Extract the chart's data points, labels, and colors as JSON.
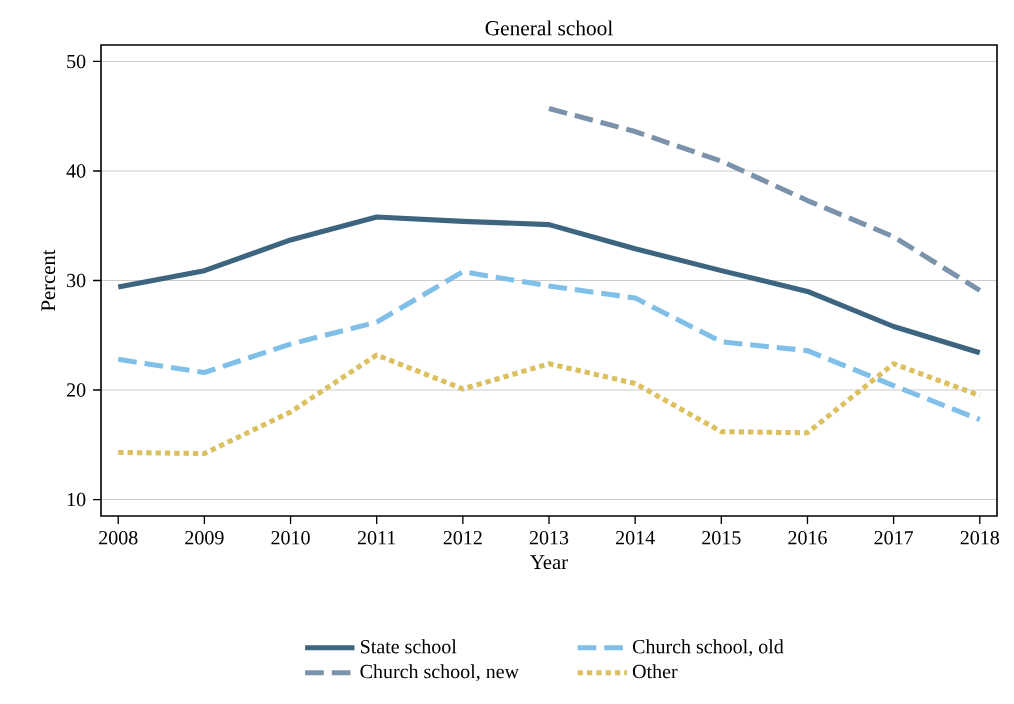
{
  "chart_data": {
    "type": "line",
    "title": "General school",
    "xlabel": "Year",
    "ylabel": "Percent",
    "x": [
      2008,
      2009,
      2010,
      2011,
      2012,
      2013,
      2014,
      2015,
      2016,
      2017,
      2018
    ],
    "series": [
      {
        "name": "State school",
        "color": "#3e6580",
        "line_style": "solid",
        "values": [
          29.4,
          30.9,
          33.7,
          35.8,
          35.4,
          35.1,
          32.9,
          30.9,
          29.0,
          25.8,
          23.4
        ]
      },
      {
        "name": "Church school, new",
        "color": "#7b92ab",
        "line_style": "dashed",
        "values": [
          null,
          null,
          null,
          null,
          null,
          45.7,
          43.6,
          40.9,
          37.3,
          34.0,
          29.1
        ]
      },
      {
        "name": "Church school, old",
        "color": "#80bfe8",
        "line_style": "dashed",
        "values": [
          22.8,
          21.6,
          24.2,
          26.2,
          30.8,
          29.5,
          28.4,
          24.4,
          23.6,
          20.4,
          17.3
        ]
      },
      {
        "name": "Other",
        "color": "#dbc060",
        "line_style": "dotted",
        "values": [
          14.3,
          14.2,
          18.0,
          23.2,
          20.1,
          22.4,
          20.6,
          16.2,
          16.1,
          22.4,
          19.5
        ]
      }
    ],
    "xlim": [
      2007.8,
      2018.2
    ],
    "ylim": [
      8.5,
      51.5
    ],
    "xticks": [
      2008,
      2009,
      2010,
      2011,
      2012,
      2013,
      2014,
      2015,
      2016,
      2017,
      2018
    ],
    "yticks": [
      10,
      20,
      30,
      40,
      50
    ],
    "grid": "y",
    "legend": "bottom",
    "marker": "none"
  }
}
